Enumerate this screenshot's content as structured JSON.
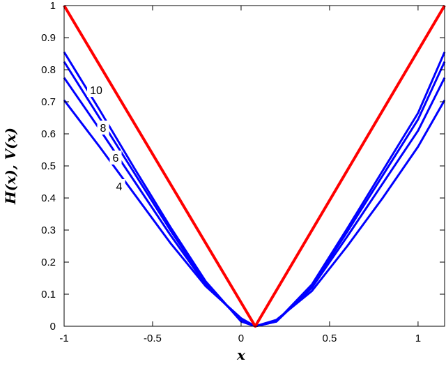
{
  "chart_data": {
    "type": "line",
    "xlabel": "x",
    "ylabel": "H(x), V(x)",
    "xlim": [
      -1,
      1.15
    ],
    "ylim": [
      0,
      1
    ],
    "xticks": [
      "-1",
      "-0.5",
      "0",
      "0.5",
      "1"
    ],
    "xtick_values": [
      -1,
      -0.5,
      0,
      0.5,
      1
    ],
    "yticks": [
      "0",
      "0.1",
      "0.2",
      "0.3",
      "0.4",
      "0.5",
      "0.6",
      "0.7",
      "0.8",
      "0.9",
      "1"
    ],
    "ytick_values": [
      0,
      0.1,
      0.2,
      0.3,
      0.4,
      0.5,
      0.6,
      0.7,
      0.8,
      0.9,
      1
    ],
    "grid": false,
    "series": [
      {
        "color": "#ff0000",
        "x": [
          -1,
          0.08,
          1.15
        ],
        "y": [
          1,
          0,
          1
        ]
      },
      {
        "label": "4",
        "color": "#0000ff",
        "x": [
          -1,
          -0.8,
          -0.6,
          -0.4,
          -0.2,
          0,
          0.08,
          0.2,
          0.4,
          0.6,
          0.8,
          1,
          1.15
        ],
        "y": [
          0.705,
          0.56,
          0.41,
          0.26,
          0.125,
          0.025,
          0,
          0.02,
          0.11,
          0.25,
          0.4,
          0.56,
          0.705
        ]
      },
      {
        "label": "6",
        "color": "#0000ff",
        "x": [
          -1,
          -0.8,
          -0.6,
          -0.4,
          -0.2,
          0,
          0.08,
          0.2,
          0.4,
          0.6,
          0.8,
          1,
          1.15
        ],
        "y": [
          0.775,
          0.615,
          0.45,
          0.285,
          0.13,
          0.02,
          0,
          0.015,
          0.12,
          0.28,
          0.445,
          0.61,
          0.775
        ]
      },
      {
        "label": "8",
        "color": "#0000ff",
        "x": [
          -1,
          -0.8,
          -0.6,
          -0.4,
          -0.2,
          0,
          0.08,
          0.2,
          0.4,
          0.6,
          0.8,
          1,
          1.15
        ],
        "y": [
          0.825,
          0.65,
          0.475,
          0.3,
          0.135,
          0.018,
          0,
          0.015,
          0.125,
          0.295,
          0.47,
          0.645,
          0.825
        ]
      },
      {
        "label": "10",
        "color": "#0000ff",
        "x": [
          -1,
          -0.8,
          -0.6,
          -0.4,
          -0.2,
          0,
          0.08,
          0.2,
          0.4,
          0.6,
          0.8,
          1,
          1.15
        ],
        "y": [
          0.855,
          0.675,
          0.49,
          0.31,
          0.14,
          0.015,
          0,
          0.015,
          0.13,
          0.305,
          0.485,
          0.665,
          0.855
        ]
      }
    ]
  }
}
